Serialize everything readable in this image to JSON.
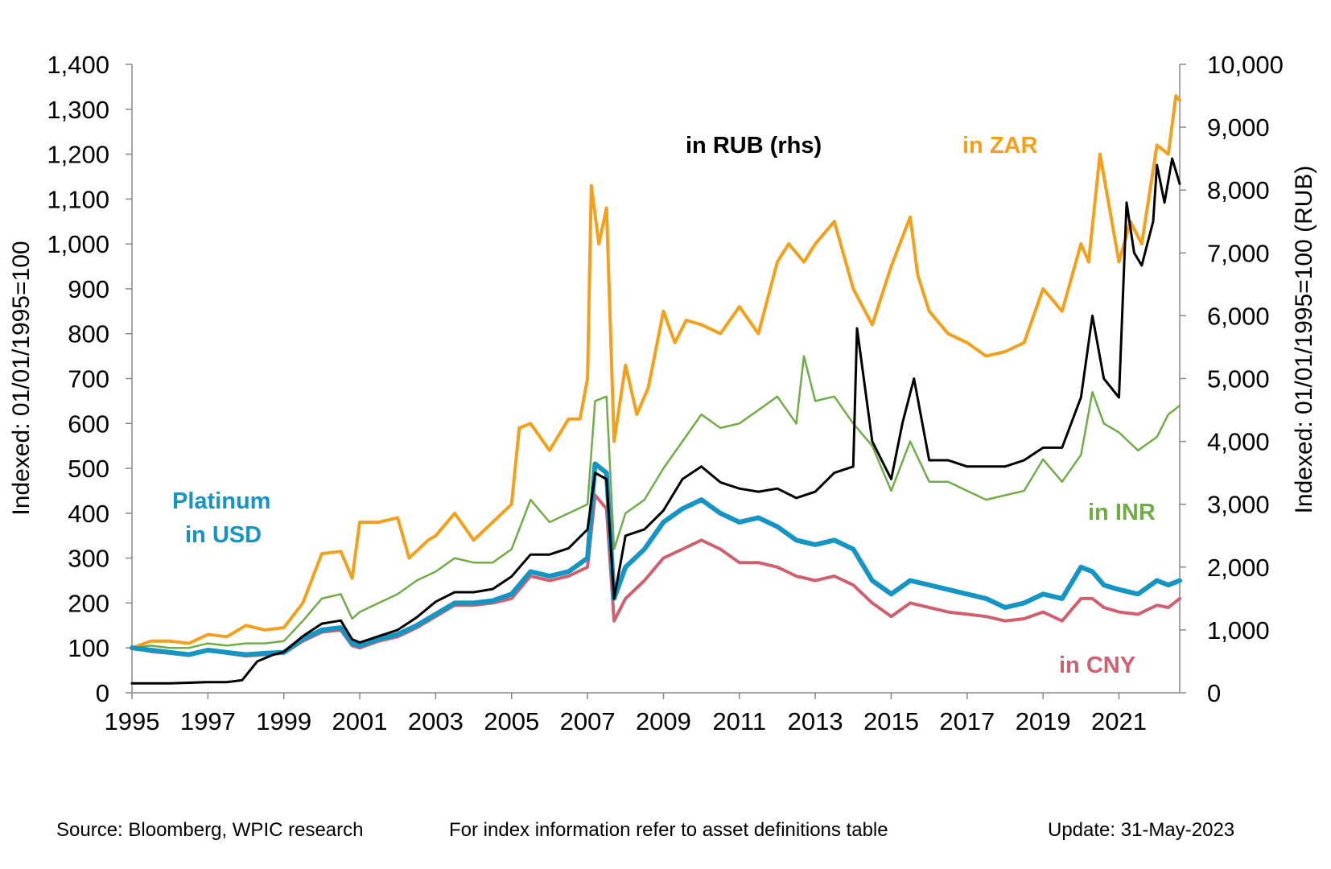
{
  "chart_data": {
    "type": "line",
    "yaxis_left": {
      "label": "Indexed:  01/01/1995=100",
      "ylim": [
        0,
        1400
      ],
      "ticks": [
        "0",
        "100",
        "200",
        "300",
        "400",
        "500",
        "600",
        "700",
        "800",
        "900",
        "1,000",
        "1,100",
        "1,200",
        "1,300",
        "1,400"
      ]
    },
    "yaxis_right": {
      "label": "Indexed:  01/01/1995=100  (RUB)",
      "ylim": [
        0,
        10000
      ],
      "ticks": [
        "0",
        "1,000",
        "2,000",
        "3,000",
        "4,000",
        "5,000",
        "6,000",
        "7,000",
        "8,000",
        "9,000",
        "10,000"
      ]
    },
    "xaxis": {
      "xlim": [
        1995,
        2022.6
      ],
      "ticks": [
        "1995",
        "1997",
        "1999",
        "2001",
        "2003",
        "2005",
        "2007",
        "2009",
        "2011",
        "2013",
        "2015",
        "2017",
        "2019",
        "2021"
      ]
    },
    "grid": false,
    "series": [
      {
        "name": "in ZAR",
        "axis": "left",
        "color": "#F5A01A",
        "x": [
          1995,
          1995.5,
          1996,
          1996.5,
          1997,
          1997.5,
          1998,
          1998.5,
          1999,
          1999.5,
          2000,
          2000.5,
          2000.8,
          2001,
          2001.5,
          2002,
          2002.3,
          2002.8,
          2003,
          2003.5,
          2004,
          2004.5,
          2005,
          2005.2,
          2005.5,
          2006,
          2006.5,
          2006.8,
          2007,
          2007.1,
          2007.3,
          2007.5,
          2007.7,
          2008,
          2008.3,
          2008.6,
          2009,
          2009.3,
          2009.6,
          2010,
          2010.5,
          2011,
          2011.5,
          2012,
          2012.3,
          2012.7,
          2013,
          2013.5,
          2013.8,
          2014,
          2014.5,
          2015,
          2015.5,
          2015.7,
          2016,
          2016.5,
          2017,
          2017.5,
          2018,
          2018.5,
          2019,
          2019.5,
          2020,
          2020.2,
          2020.5,
          2021,
          2021.3,
          2021.6,
          2022,
          2022.3,
          2022.5,
          2022.6
        ],
        "y": [
          100,
          115,
          115,
          110,
          130,
          125,
          150,
          140,
          145,
          200,
          310,
          315,
          255,
          380,
          380,
          390,
          300,
          340,
          350,
          400,
          340,
          380,
          420,
          590,
          600,
          540,
          610,
          610,
          700,
          1130,
          1000,
          1080,
          560,
          730,
          620,
          680,
          850,
          780,
          830,
          820,
          800,
          860,
          800,
          960,
          1000,
          960,
          1000,
          1050,
          960,
          900,
          820,
          950,
          1060,
          930,
          850,
          800,
          780,
          750,
          760,
          780,
          900,
          850,
          1000,
          960,
          1200,
          960,
          1050,
          1000,
          1220,
          1200,
          1330,
          1320
        ]
      },
      {
        "name": "in INR",
        "axis": "left",
        "color": "#70AD47",
        "x": [
          1995,
          1995.5,
          1996,
          1996.5,
          1997,
          1997.5,
          1998,
          1998.5,
          1999,
          1999.5,
          2000,
          2000.5,
          2000.8,
          2001,
          2001.5,
          2002,
          2002.5,
          2003,
          2003.5,
          2004,
          2004.5,
          2005,
          2005.5,
          2006,
          2006.5,
          2007,
          2007.2,
          2007.5,
          2007.7,
          2008,
          2008.5,
          2009,
          2009.5,
          2010,
          2010.5,
          2011,
          2011.5,
          2012,
          2012.5,
          2012.7,
          2013,
          2013.5,
          2014,
          2014.5,
          2015,
          2015.5,
          2016,
          2016.5,
          2017,
          2017.5,
          2018,
          2018.5,
          2019,
          2019.5,
          2020,
          2020.3,
          2020.6,
          2021,
          2021.5,
          2022,
          2022.3,
          2022.6
        ],
        "y": [
          100,
          105,
          100,
          100,
          110,
          105,
          110,
          110,
          115,
          160,
          210,
          220,
          165,
          180,
          200,
          220,
          250,
          270,
          300,
          290,
          290,
          320,
          430,
          380,
          400,
          420,
          650,
          660,
          320,
          400,
          430,
          500,
          560,
          620,
          590,
          600,
          630,
          660,
          600,
          750,
          650,
          660,
          600,
          550,
          450,
          560,
          470,
          470,
          450,
          430,
          440,
          450,
          520,
          470,
          530,
          670,
          600,
          580,
          540,
          570,
          620,
          640
        ]
      },
      {
        "name": "Platinum in USD",
        "axis": "left",
        "color": "#1595C3",
        "x": [
          1995,
          1995.5,
          1996,
          1996.5,
          1997,
          1997.5,
          1998,
          1998.5,
          1999,
          1999.5,
          2000,
          2000.5,
          2000.8,
          2001,
          2001.5,
          2002,
          2002.5,
          2003,
          2003.5,
          2004,
          2004.5,
          2005,
          2005.5,
          2006,
          2006.5,
          2007,
          2007.2,
          2007.5,
          2007.7,
          2008,
          2008.5,
          2009,
          2009.5,
          2010,
          2010.5,
          2011,
          2011.5,
          2012,
          2012.5,
          2013,
          2013.5,
          2014,
          2014.5,
          2015,
          2015.5,
          2016,
          2016.5,
          2017,
          2017.5,
          2018,
          2018.5,
          2019,
          2019.5,
          2020,
          2020.3,
          2020.6,
          2021,
          2021.5,
          2022,
          2022.3,
          2022.6
        ],
        "y": [
          100,
          95,
          90,
          85,
          95,
          90,
          85,
          88,
          90,
          120,
          140,
          145,
          110,
          105,
          120,
          130,
          150,
          175,
          200,
          200,
          205,
          220,
          270,
          260,
          270,
          300,
          510,
          490,
          210,
          280,
          320,
          380,
          410,
          430,
          400,
          380,
          390,
          370,
          340,
          330,
          340,
          320,
          250,
          220,
          250,
          240,
          230,
          220,
          210,
          190,
          200,
          220,
          210,
          280,
          270,
          240,
          230,
          220,
          250,
          240,
          250
        ]
      },
      {
        "name": "in CNY",
        "axis": "left",
        "color": "#D06070",
        "x": [
          1995,
          1995.5,
          1996,
          1996.5,
          1997,
          1997.5,
          1998,
          1998.5,
          1999,
          1999.5,
          2000,
          2000.5,
          2000.8,
          2001,
          2001.5,
          2002,
          2002.5,
          2003,
          2003.5,
          2004,
          2004.5,
          2005,
          2005.5,
          2006,
          2006.5,
          2007,
          2007.2,
          2007.5,
          2007.7,
          2008,
          2008.5,
          2009,
          2009.5,
          2010,
          2010.5,
          2011,
          2011.5,
          2012,
          2012.5,
          2013,
          2013.5,
          2014,
          2014.5,
          2015,
          2015.5,
          2016,
          2016.5,
          2017,
          2017.5,
          2018,
          2018.5,
          2019,
          2019.5,
          2020,
          2020.3,
          2020.6,
          2021,
          2021.5,
          2022,
          2022.3,
          2022.6
        ],
        "y": [
          100,
          92,
          88,
          85,
          95,
          88,
          82,
          85,
          88,
          115,
          135,
          140,
          105,
          100,
          115,
          125,
          145,
          170,
          195,
          195,
          200,
          210,
          260,
          250,
          260,
          280,
          440,
          410,
          160,
          210,
          250,
          300,
          320,
          340,
          320,
          290,
          290,
          280,
          260,
          250,
          260,
          240,
          200,
          170,
          200,
          190,
          180,
          175,
          170,
          160,
          165,
          180,
          160,
          210,
          210,
          190,
          180,
          175,
          195,
          190,
          210
        ]
      },
      {
        "name": "in RUB (rhs)",
        "axis": "right",
        "color": "#000000",
        "x": [
          1995,
          1995.5,
          1996,
          1996.5,
          1997,
          1997.5,
          1997.9,
          1998.3,
          1998.7,
          1999,
          1999.5,
          2000,
          2000.5,
          2000.8,
          2001,
          2001.5,
          2002,
          2002.5,
          2003,
          2003.5,
          2004,
          2004.5,
          2005,
          2005.5,
          2006,
          2006.5,
          2007,
          2007.2,
          2007.5,
          2007.7,
          2008,
          2008.5,
          2009,
          2009.5,
          2010,
          2010.5,
          2011,
          2011.5,
          2012,
          2012.5,
          2013,
          2013.5,
          2014,
          2014.1,
          2014.5,
          2015,
          2015.3,
          2015.6,
          2016,
          2016.5,
          2017,
          2017.5,
          2018,
          2018.5,
          2019,
          2019.5,
          2020,
          2020.3,
          2020.6,
          2021,
          2021.2,
          2021.4,
          2021.6,
          2021.9,
          2022,
          2022.2,
          2022.4,
          2022.6
        ],
        "y": [
          150,
          150,
          150,
          160,
          170,
          170,
          200,
          500,
          600,
          650,
          900,
          1100,
          1150,
          850,
          800,
          900,
          1000,
          1200,
          1450,
          1600,
          1600,
          1650,
          1850,
          2200,
          2200,
          2300,
          2600,
          3500,
          3400,
          1500,
          2500,
          2600,
          2900,
          3400,
          3600,
          3350,
          3250,
          3200,
          3250,
          3100,
          3200,
          3500,
          3600,
          5800,
          4000,
          3400,
          4300,
          5000,
          3700,
          3700,
          3600,
          3600,
          3600,
          3700,
          3900,
          3900,
          4700,
          6000,
          5000,
          4700,
          7800,
          7000,
          6800,
          7500,
          8400,
          7800,
          8500,
          8100
        ]
      }
    ],
    "annotations": [
      {
        "id": "rub",
        "text": "in RUB (rhs)"
      },
      {
        "id": "zar",
        "text": "in ZAR"
      },
      {
        "id": "usd1",
        "text": "Platinum"
      },
      {
        "id": "usd2",
        "text": "in USD"
      },
      {
        "id": "inr",
        "text": "in INR"
      },
      {
        "id": "cny",
        "text": "in CNY"
      }
    ]
  },
  "footer": {
    "source": "Source: Bloomberg, WPIC research",
    "note": "For index information refer to asset definitions table",
    "update": "Update: 31-May-2023"
  }
}
